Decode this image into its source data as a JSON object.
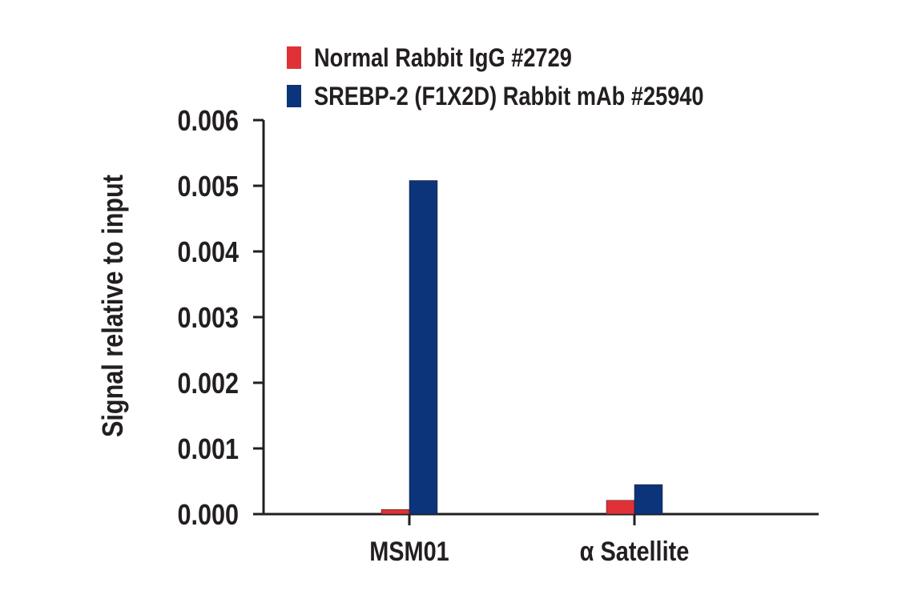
{
  "chart_data": {
    "type": "bar",
    "title": "",
    "xlabel": "",
    "ylabel": "Signal relative to input",
    "ylim": [
      0,
      0.006
    ],
    "yticks": [
      "0.000",
      "0.001",
      "0.002",
      "0.003",
      "0.004",
      "0.005",
      "0.006"
    ],
    "categories": [
      "MSM01",
      "α Satellite"
    ],
    "series": [
      {
        "name": "Normal Rabbit IgG #2729",
        "color": "#e03236",
        "values": [
          7e-05,
          0.00021
        ]
      },
      {
        "name": "SREBP-2 (F1X2D) Rabbit mAb #25940",
        "color": "#0b347a",
        "values": [
          0.00508,
          0.00045
        ]
      }
    ],
    "legend_position": "top",
    "grid": false
  }
}
